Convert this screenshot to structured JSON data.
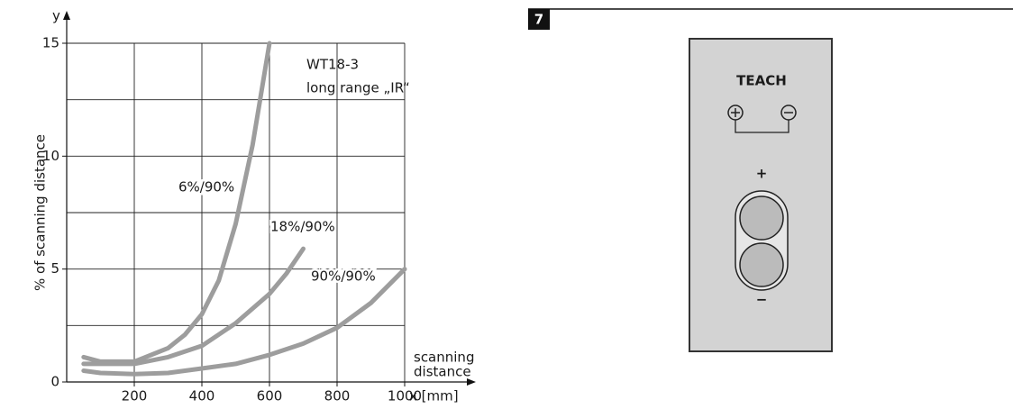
{
  "chart_data": {
    "type": "line",
    "y_axis_symbol": "y",
    "y_label": "% of scanning distance",
    "x_label": "x [mm]",
    "x_axis_note": [
      "scanning",
      "distance"
    ],
    "annotations": [
      "WT18-3",
      "long range „IR“"
    ],
    "xlim": [
      0,
      1000
    ],
    "xticks": [
      200,
      400,
      600,
      800,
      1000
    ],
    "ylim": [
      0,
      15
    ],
    "yticks": [
      0,
      5,
      10,
      15
    ],
    "y_gridlines": [
      2.5,
      5,
      7.5,
      10,
      12.5,
      15
    ],
    "grid": true,
    "series": [
      {
        "name": "6%/90%",
        "color": "#9d9d9d",
        "x": [
          50,
          100,
          200,
          300,
          350,
          400,
          450,
          500,
          550,
          600
        ],
        "values": [
          1.1,
          0.9,
          0.9,
          1.5,
          2.1,
          3.0,
          4.5,
          7,
          10.5,
          15
        ]
      },
      {
        "name": "18%/90%",
        "color": "#9d9d9d",
        "x": [
          50,
          100,
          200,
          300,
          400,
          500,
          600,
          650,
          700
        ],
        "values": [
          0.8,
          0.8,
          0.8,
          1.1,
          1.6,
          2.6,
          3.9,
          4.8,
          5.9
        ]
      },
      {
        "name": "90%/90%",
        "color": "#9d9d9d",
        "x": [
          50,
          100,
          200,
          300,
          400,
          500,
          600,
          700,
          800,
          900,
          1000
        ],
        "values": [
          0.5,
          0.4,
          0.35,
          0.4,
          0.6,
          0.8,
          1.2,
          1.7,
          2.4,
          3.5,
          5
        ]
      }
    ]
  },
  "figure": {
    "number": "7",
    "label": "TEACH",
    "plus": "+",
    "minus": "−"
  }
}
